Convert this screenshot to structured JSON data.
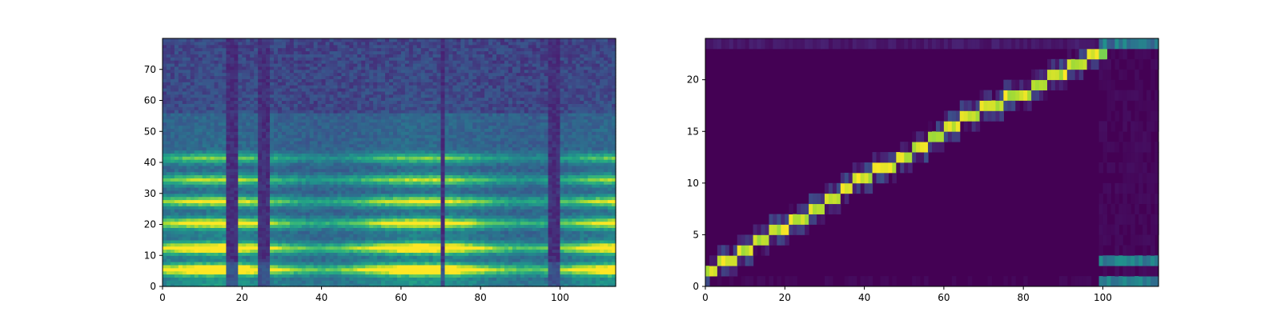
{
  "chart_data": [
    {
      "type": "heatmap",
      "title": "",
      "xlabel": "",
      "ylabel": "",
      "xlim": [
        0,
        114
      ],
      "ylim": [
        0,
        80
      ],
      "xticks": [
        0,
        20,
        40,
        60,
        80,
        100
      ],
      "yticks": [
        0,
        10,
        20,
        30,
        40,
        50,
        60,
        70
      ],
      "tick_labels": {
        "x": [
          "0",
          "20",
          "40",
          "60",
          "80",
          "100"
        ],
        "y": [
          "0",
          "10",
          "20",
          "30",
          "40",
          "50",
          "60",
          "70"
        ]
      },
      "colormap": "viridis",
      "n_frames": 114,
      "n_bins": 80,
      "silent_frames": [
        16,
        17,
        18,
        24,
        25,
        26,
        70,
        97,
        98,
        99
      ],
      "bright_bands": [
        {
          "bin": 5,
          "intensity": 0.95
        },
        {
          "bin": 12,
          "intensity": 0.9
        },
        {
          "bin": 20,
          "intensity": 0.75
        },
        {
          "bin": 27,
          "intensity": 0.65
        },
        {
          "bin": 34,
          "intensity": 0.55
        },
        {
          "bin": 41,
          "intensity": 0.45
        }
      ]
    },
    {
      "type": "heatmap",
      "title": "",
      "xlabel": "",
      "ylabel": "",
      "xlim": [
        0,
        114
      ],
      "ylim": [
        0,
        24
      ],
      "xticks": [
        0,
        20,
        40,
        60,
        80,
        100
      ],
      "yticks": [
        0,
        5,
        10,
        15,
        20
      ],
      "tick_labels": {
        "x": [
          "0",
          "20",
          "40",
          "60",
          "80",
          "100"
        ],
        "y": [
          "0",
          "5",
          "10",
          "15",
          "20"
        ]
      },
      "colormap": "viridis",
      "n_frames": 114,
      "n_tokens": 24,
      "alignment_path": [
        {
          "frame": 0,
          "token": 1
        },
        {
          "frame": 3,
          "token": 2
        },
        {
          "frame": 8,
          "token": 3
        },
        {
          "frame": 12,
          "token": 4
        },
        {
          "frame": 16,
          "token": 5
        },
        {
          "frame": 21,
          "token": 6
        },
        {
          "frame": 26,
          "token": 7
        },
        {
          "frame": 30,
          "token": 8
        },
        {
          "frame": 34,
          "token": 9
        },
        {
          "frame": 37,
          "token": 10
        },
        {
          "frame": 42,
          "token": 11
        },
        {
          "frame": 48,
          "token": 12
        },
        {
          "frame": 52,
          "token": 13
        },
        {
          "frame": 56,
          "token": 14
        },
        {
          "frame": 60,
          "token": 15
        },
        {
          "frame": 64,
          "token": 16
        },
        {
          "frame": 69,
          "token": 17
        },
        {
          "frame": 75,
          "token": 18
        },
        {
          "frame": 82,
          "token": 19
        },
        {
          "frame": 86,
          "token": 20
        },
        {
          "frame": 91,
          "token": 21
        },
        {
          "frame": 96,
          "token": 22
        }
      ]
    }
  ]
}
